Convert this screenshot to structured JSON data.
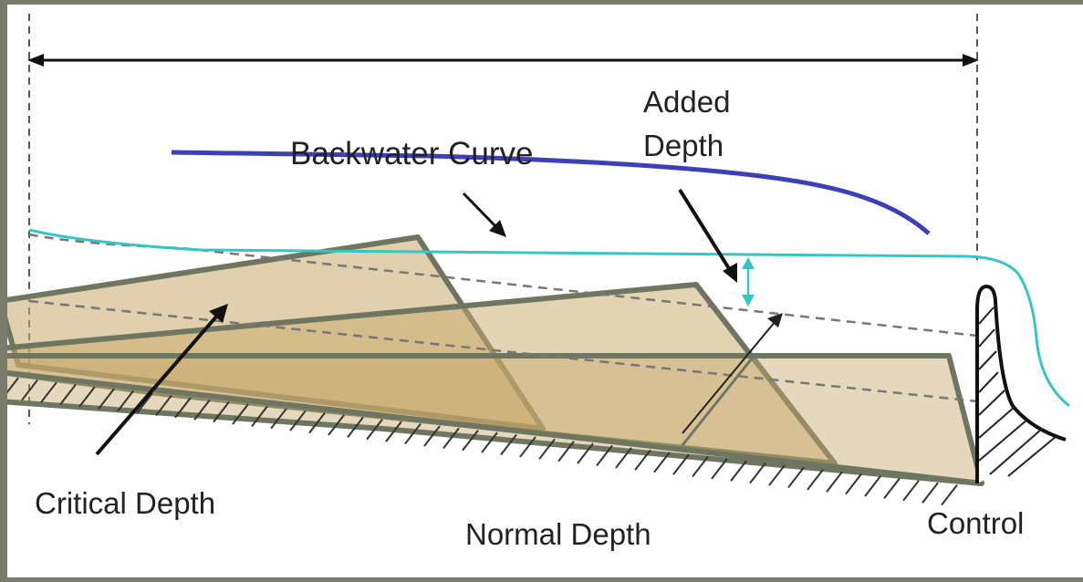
{
  "labels": {
    "backwater_curve": "Backwater Curve",
    "added_depth_line1": "Added",
    "added_depth_line2": "Depth",
    "critical_depth": "Critical Depth",
    "normal_depth": "Normal Depth",
    "control": "Control"
  },
  "colors": {
    "frame": "#7b7b6c",
    "panel": "#ffffff",
    "backwater_curve": "#3b3fb8",
    "water_surface": "#36c5c5",
    "wedge_fill": "#c7a96a",
    "wedge_stroke": "#6e7560",
    "hatch": "#333333"
  }
}
